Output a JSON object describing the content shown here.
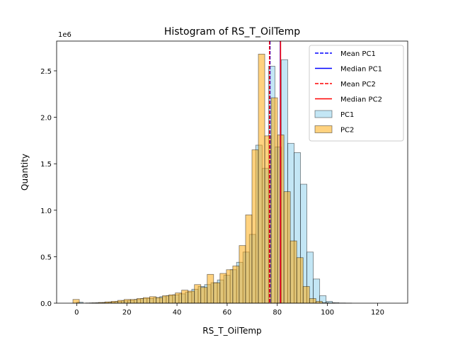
{
  "chart_data": {
    "type": "bar",
    "title": "Histogram of RS_T_OilTemp",
    "xlabel": "RS_T_OilTemp",
    "ylabel": "Quantity",
    "y_offset_label": "1e6",
    "xlim": [
      -8,
      132
    ],
    "ylim": [
      0,
      2.82
    ],
    "x_ticks": [
      0,
      20,
      40,
      60,
      80,
      100,
      120
    ],
    "y_ticks": [
      0.0,
      0.5,
      1.0,
      1.5,
      2.0,
      2.5
    ],
    "y_tick_labels": [
      "0.0",
      "0.5",
      "1.0",
      "1.5",
      "2.0",
      "2.5"
    ],
    "grid": false,
    "legend_position": "top-right",
    "colors": {
      "pc1_fill": "#87ceeb",
      "pc2_fill": "#ffa500",
      "mean_pc1": "#0000ff",
      "median_pc1": "#0000ff",
      "mean_pc2": "#ff0000",
      "median_pc2": "#ff0000"
    },
    "legend": [
      {
        "label": "Mean PC1",
        "kind": "dashed",
        "color": "#0000ff"
      },
      {
        "label": "Median PC1",
        "kind": "solid",
        "color": "#0000ff"
      },
      {
        "label": "Mean PC2",
        "kind": "dashed",
        "color": "#ff0000"
      },
      {
        "label": "Median PC2",
        "kind": "solid",
        "color": "#ff0000"
      },
      {
        "label": "PC1",
        "kind": "patch",
        "color": "#87ceeb"
      },
      {
        "label": "PC2",
        "kind": "patch",
        "color": "#ffa500"
      }
    ],
    "reference_lines": [
      {
        "name": "Mean PC1",
        "x": 77.1,
        "style": "dashed",
        "color": "#0000ff"
      },
      {
        "name": "Median PC1",
        "x": 81.2,
        "style": "solid",
        "color": "#0000ff"
      },
      {
        "name": "Mean PC2",
        "x": 76.9,
        "style": "dashed",
        "color": "#ff0000"
      },
      {
        "name": "Median PC2",
        "x": 81.3,
        "style": "solid",
        "color": "#ff0000"
      }
    ],
    "series": [
      {
        "name": "PC1",
        "color": "#87ceeb",
        "bin_start": 0,
        "bin_width": 2.55,
        "values": [
          0.01,
          0.0,
          0.002,
          0.004,
          0.006,
          0.01,
          0.018,
          0.025,
          0.03,
          0.04,
          0.05,
          0.05,
          0.06,
          0.07,
          0.08,
          0.09,
          0.1,
          0.12,
          0.15,
          0.18,
          0.2,
          0.22,
          0.25,
          0.3,
          0.36,
          0.44,
          0.55,
          0.74,
          1.7,
          1.45,
          2.55,
          1.68,
          2.62,
          1.72,
          1.62,
          1.28,
          0.55,
          0.26,
          0.08,
          0.02,
          0.005,
          0.002,
          0.001,
          0.0,
          0.0,
          0.0,
          0.0,
          0.0,
          0.0,
          0.0
        ]
      },
      {
        "name": "PC2",
        "color": "#ffa500",
        "bin_start": -1.5,
        "bin_width": 2.55,
        "values": [
          0.04,
          0.0,
          0.002,
          0.004,
          0.008,
          0.014,
          0.02,
          0.03,
          0.04,
          0.04,
          0.05,
          0.06,
          0.07,
          0.06,
          0.08,
          0.09,
          0.11,
          0.14,
          0.13,
          0.2,
          0.17,
          0.31,
          0.22,
          0.32,
          0.36,
          0.4,
          0.62,
          0.95,
          1.65,
          2.68,
          1.8,
          2.21,
          1.81,
          1.2,
          0.67,
          0.49,
          0.18,
          0.05,
          0.02,
          0.005,
          0.002,
          0.0,
          0.0,
          0.0,
          0.0,
          0.0,
          0.0,
          0.0,
          0.0,
          0.0
        ]
      }
    ]
  }
}
